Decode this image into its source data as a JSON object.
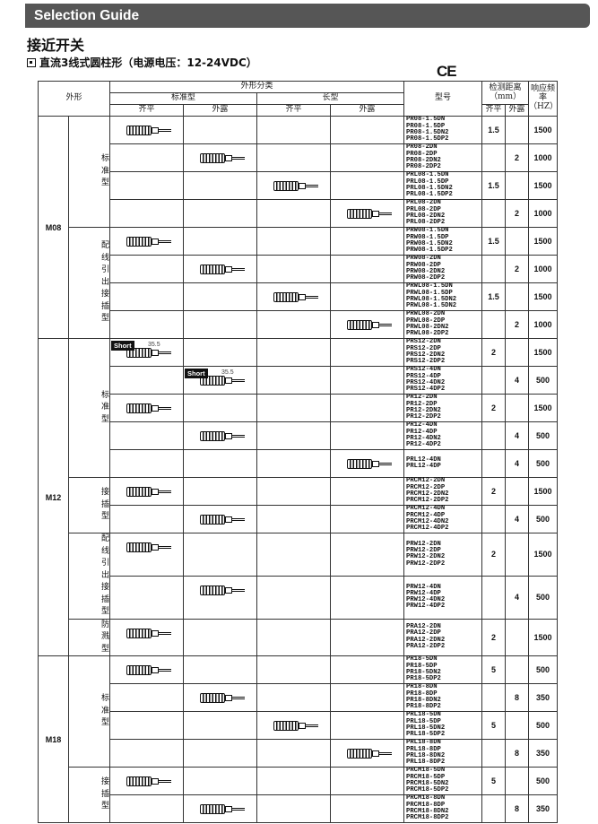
{
  "banner": "Selection Guide",
  "title": "接近开关",
  "subtitle": "直流3线式圆柱形（电源电压：12-24VDC）",
  "ce_mark": "CE",
  "header": {
    "appearance": "外形",
    "classification": "外形分类",
    "standard": "标准型",
    "long": "长型",
    "flush": "齐平",
    "nonflush": "外露",
    "model": "型号",
    "distance": "检测距离（mm）",
    "frequency": "响应频率（HZ）"
  },
  "short_label": "Short",
  "short_dim": "35.5",
  "groups": [
    {
      "name": "M08",
      "subs": [
        {
          "name": "标准型",
          "rows": [
            {
              "col": 0,
              "models": "PR08-1.5DN\nPR08-1.5DP\nPR08-1.5DN2\nPR08-1.5DP2",
              "flush": "1.5",
              "nonflush": "",
              "freq": "1500"
            },
            {
              "col": 1,
              "models": "PR08-2DN\nPR08-2DP\nPR08-2DN2\nPR08-2DP2",
              "flush": "",
              "nonflush": "2",
              "freq": "1000"
            },
            {
              "col": 2,
              "models": "PRL08-1.5DN\nPRL08-1.5DP\nPRL08-1.5DN2\nPRL08-1.5DP2",
              "flush": "1.5",
              "nonflush": "",
              "freq": "1500"
            },
            {
              "col": 3,
              "models": "PRL08-2DN\nPRL08-2DP\nPRL08-2DN2\nPRL08-2DP2",
              "flush": "",
              "nonflush": "2",
              "freq": "1000"
            }
          ]
        },
        {
          "name": "配线引出\n接插型",
          "rows": [
            {
              "col": 0,
              "models": "PRW08-1.5DN\nPRW08-1.5DP\nPRW08-1.5DN2\nPRW08-1.5DP2",
              "flush": "1.5",
              "nonflush": "",
              "freq": "1500"
            },
            {
              "col": 1,
              "models": "PRW08-2DN\nPRW08-2DP\nPRW08-2DN2\nPRW08-2DP2",
              "flush": "",
              "nonflush": "2",
              "freq": "1000"
            },
            {
              "col": 2,
              "models": "PRWL08-1.5DN\nPRWL08-1.5DP\nPRWL08-1.5DN2\nPRWL08-1.5DN2",
              "flush": "1.5",
              "nonflush": "",
              "freq": "1500"
            },
            {
              "col": 3,
              "models": "PRWL08-2DN\nPRWL08-2DP\nPRWL08-2DN2\nPRWL08-2DP2",
              "flush": "",
              "nonflush": "2",
              "freq": "1000"
            }
          ]
        }
      ]
    },
    {
      "name": "M12",
      "subs": [
        {
          "name": "标准型",
          "rows": [
            {
              "col": 0,
              "short": true,
              "models": "PRS12-2DN\nPRS12-2DP\nPRS12-2DN2\nPRS12-2DP2",
              "flush": "2",
              "nonflush": "",
              "freq": "1500"
            },
            {
              "col": 1,
              "short": true,
              "models": "PRS12-4DN\nPRS12-4DP\nPRS12-4DN2\nPRS12-4DP2",
              "flush": "",
              "nonflush": "4",
              "freq": "500"
            },
            {
              "col": 0,
              "models": "PR12-2DN\nPR12-2DP\nPR12-2DN2\nPR12-2DP2",
              "flush": "2",
              "nonflush": "",
              "freq": "1500"
            },
            {
              "col": 1,
              "models": "PR12-4DN\nPR12-4DP\nPR12-4DN2\nPR12-4DP2",
              "flush": "",
              "nonflush": "4",
              "freq": "500"
            },
            {
              "col": 3,
              "models": "PRL12-4DN\nPRL12-4DP",
              "flush": "",
              "nonflush": "4",
              "freq": "500"
            }
          ]
        },
        {
          "name": "接插型",
          "rows": [
            {
              "col": 0,
              "models": "PRCM12-2DN\nPRCM12-2DP\nPRCM12-2DN2\nPRCM12-2DP2",
              "flush": "2",
              "nonflush": "",
              "freq": "1500"
            },
            {
              "col": 1,
              "models": "PRCM12-4DN\nPRCM12-4DP\nPRCM12-4DN2\nPRCM12-4DP2",
              "flush": "",
              "nonflush": "4",
              "freq": "500"
            }
          ]
        },
        {
          "name": "配线引出\n接插型",
          "rows": [
            {
              "col": 0,
              "models": "PRW12-2DN\nPRW12-2DP\nPRW12-2DN2\nPRW12-2DP2",
              "flush": "2",
              "nonflush": "",
              "freq": "1500"
            },
            {
              "col": 1,
              "models": "PRW12-4DN\nPRW12-4DP\nPRW12-4DN2\nPRW12-4DP2",
              "flush": "",
              "nonflush": "4",
              "freq": "500"
            }
          ]
        },
        {
          "name": "防溅型",
          "rows": [
            {
              "col": 0,
              "models": "PRA12-2DN\nPRA12-2DP\nPRA12-2DN2\nPRA12-2DP2",
              "flush": "2",
              "nonflush": "",
              "freq": "1500"
            }
          ]
        }
      ]
    },
    {
      "name": "M18",
      "subs": [
        {
          "name": "标准型",
          "rows": [
            {
              "col": 0,
              "models": "PR18-5DN\nPR18-5DP\nPR18-5DN2\nPR18-5DP2",
              "flush": "5",
              "nonflush": "",
              "freq": "500"
            },
            {
              "col": 1,
              "models": "PR18-8DN\nPR18-8DP\nPR18-8DN2\nPR18-8DP2",
              "flush": "",
              "nonflush": "8",
              "freq": "350"
            },
            {
              "col": 2,
              "models": "PRL18-5DN\nPRL18-5DP\nPRL18-5DN2\nPRL18-5DP2",
              "flush": "5",
              "nonflush": "",
              "freq": "500"
            },
            {
              "col": 3,
              "models": "PRL18-8DN\nPRL18-8DP\nPRL18-8DN2\nPRL18-8DP2",
              "flush": "",
              "nonflush": "8",
              "freq": "350"
            }
          ]
        },
        {
          "name": "接插型",
          "rows": [
            {
              "col": 0,
              "models": "PRCM18-5DN\nPRCM18-5DP\nPRCM18-5DN2\nPRCM18-5DP2",
              "flush": "5",
              "nonflush": "",
              "freq": "500"
            },
            {
              "col": 1,
              "models": "PRCM18-8DN\nPRCM18-8DP\nPRCM18-8DN2\nPRCM18-8DP2",
              "flush": "",
              "nonflush": "8",
              "freq": "350"
            }
          ]
        }
      ]
    }
  ]
}
